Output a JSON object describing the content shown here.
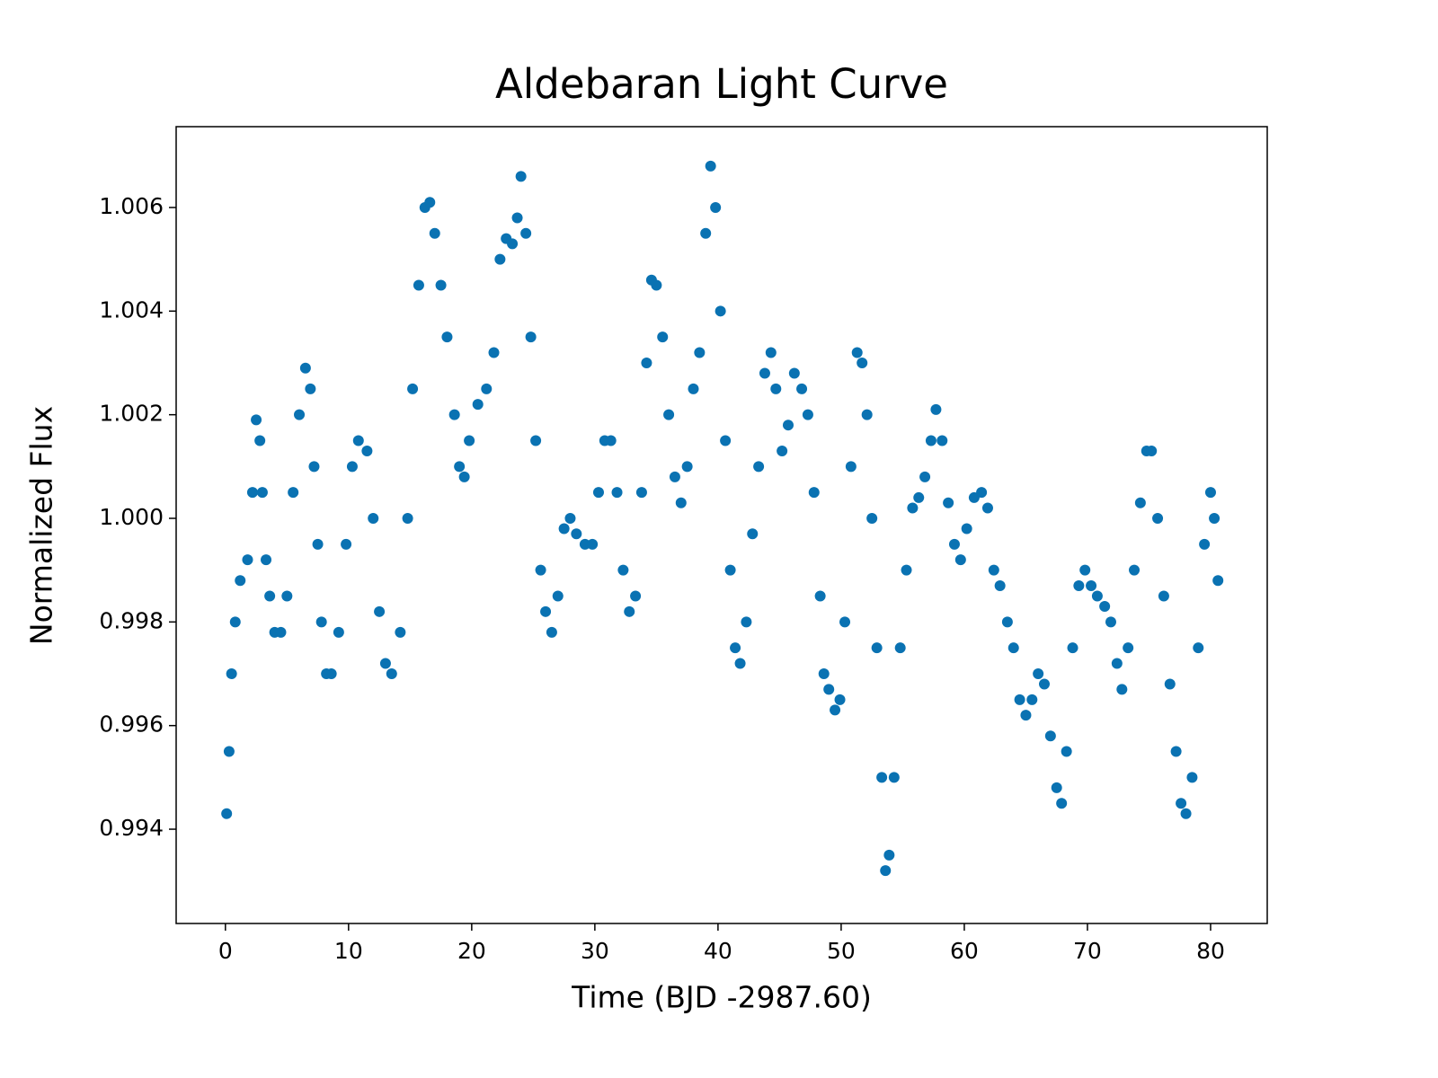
{
  "chart_data": {
    "type": "scatter",
    "title": "Aldebaran Light Curve",
    "xlabel": "Time (BJD -2987.60)",
    "ylabel": "Normalized Flux",
    "xlim": [
      -4,
      84.6
    ],
    "ylim": [
      0.99218,
      1.00756
    ],
    "xticks": [
      0,
      10,
      20,
      30,
      40,
      50,
      60,
      70,
      80
    ],
    "yticks": [
      0.994,
      0.996,
      0.998,
      {
        "value": 1,
        "label": "1.000"
      },
      1.002,
      1.004,
      1.006
    ],
    "color": "#0a72b2",
    "x": [
      0.1,
      0.3,
      0.5,
      0.8,
      1.2,
      1.8,
      2.2,
      2.5,
      2.8,
      3.0,
      3.3,
      3.6,
      4.0,
      4.5,
      5.0,
      5.5,
      6.0,
      6.5,
      6.9,
      7.2,
      7.5,
      7.8,
      8.2,
      8.6,
      9.2,
      9.8,
      10.3,
      10.8,
      11.5,
      12.0,
      12.5,
      13.0,
      13.5,
      14.2,
      14.8,
      15.2,
      15.7,
      16.2,
      16.6,
      17.0,
      17.5,
      18.0,
      18.6,
      19.0,
      19.4,
      19.8,
      20.5,
      21.2,
      21.8,
      22.3,
      22.8,
      23.3,
      23.7,
      24.0,
      24.4,
      24.8,
      25.2,
      25.6,
      26.0,
      26.5,
      27.0,
      27.5,
      28.0,
      28.5,
      29.2,
      29.8,
      30.3,
      30.8,
      31.3,
      31.8,
      32.3,
      32.8,
      33.3,
      33.8,
      34.2,
      34.6,
      35.0,
      35.5,
      36.0,
      36.5,
      37.0,
      37.5,
      38.0,
      38.5,
      39.0,
      39.4,
      39.8,
      40.2,
      40.6,
      41.0,
      41.4,
      41.8,
      42.3,
      42.8,
      43.3,
      43.8,
      44.3,
      44.7,
      45.2,
      45.7,
      46.2,
      46.8,
      47.3,
      47.8,
      48.3,
      48.6,
      49.0,
      49.5,
      49.9,
      50.3,
      50.8,
      51.3,
      51.7,
      52.1,
      52.5,
      52.9,
      53.3,
      53.6,
      53.9,
      54.3,
      54.8,
      55.3,
      55.8,
      56.3,
      56.8,
      57.3,
      57.7,
      58.2,
      58.7,
      59.2,
      59.7,
      60.2,
      60.8,
      61.4,
      61.9,
      62.4,
      62.9,
      63.5,
      64.0,
      64.5,
      65.0,
      65.5,
      66.0,
      66.5,
      67.0,
      67.5,
      67.9,
      68.3,
      68.8,
      69.3,
      69.8,
      70.3,
      70.8,
      71.4,
      71.9,
      72.4,
      72.8,
      73.3,
      73.8,
      74.3,
      74.8,
      75.2,
      75.7,
      76.2,
      76.7,
      77.2,
      77.6,
      78.0,
      78.5,
      79.0,
      79.5,
      80.0,
      80.3,
      80.6
    ],
    "values": [
      0.9943,
      0.9955,
      0.997,
      0.998,
      0.9988,
      0.9992,
      1.0005,
      1.0019,
      1.0015,
      1.0005,
      0.9992,
      0.9985,
      0.9978,
      0.9978,
      0.9985,
      1.0005,
      1.002,
      1.0029,
      1.0025,
      1.001,
      0.9995,
      0.998,
      0.997,
      0.997,
      0.9978,
      0.9995,
      1.001,
      1.0015,
      1.0013,
      1.0,
      0.9982,
      0.9972,
      0.997,
      0.9978,
      1.0,
      1.0025,
      1.0045,
      1.006,
      1.0061,
      1.0055,
      1.0045,
      1.0035,
      1.002,
      1.001,
      1.0008,
      1.0015,
      1.0022,
      1.0025,
      1.0032,
      1.005,
      1.0054,
      1.0053,
      1.0058,
      1.0066,
      1.0055,
      1.0035,
      1.0015,
      0.999,
      0.9982,
      0.9978,
      0.9985,
      0.9998,
      1.0,
      0.9997,
      0.9995,
      0.9995,
      1.0005,
      1.0015,
      1.0015,
      1.0005,
      0.999,
      0.9982,
      0.9985,
      1.0005,
      1.003,
      1.0046,
      1.0045,
      1.0035,
      1.002,
      1.0008,
      1.0003,
      1.001,
      1.0025,
      1.0032,
      1.0055,
      1.0068,
      1.006,
      1.004,
      1.0015,
      0.999,
      0.9975,
      0.9972,
      0.998,
      0.9997,
      1.001,
      1.0028,
      1.0032,
      1.0025,
      1.0013,
      1.0018,
      1.0028,
      1.0025,
      1.002,
      1.0005,
      0.9985,
      0.997,
      0.9967,
      0.9963,
      0.9965,
      0.998,
      1.001,
      1.0032,
      1.003,
      1.002,
      1.0,
      0.9975,
      0.995,
      0.9932,
      0.9935,
      0.995,
      0.9975,
      0.999,
      1.0002,
      1.0004,
      1.0008,
      1.0015,
      1.0021,
      1.0015,
      1.0003,
      0.9995,
      0.9992,
      0.9998,
      1.0004,
      1.0005,
      1.0002,
      0.999,
      0.9987,
      0.998,
      0.9975,
      0.9965,
      0.9962,
      0.9965,
      0.997,
      0.9968,
      0.9958,
      0.9948,
      0.9945,
      0.9955,
      0.9975,
      0.9987,
      0.999,
      0.9987,
      0.9985,
      0.9983,
      0.998,
      0.9972,
      0.9967,
      0.9975,
      0.999,
      1.0003,
      1.0013,
      1.0013,
      1.0,
      0.9985,
      0.9968,
      0.9955,
      0.9945,
      0.9943,
      0.995,
      0.9975,
      0.9995,
      1.0005,
      1.0,
      0.9988
    ]
  }
}
